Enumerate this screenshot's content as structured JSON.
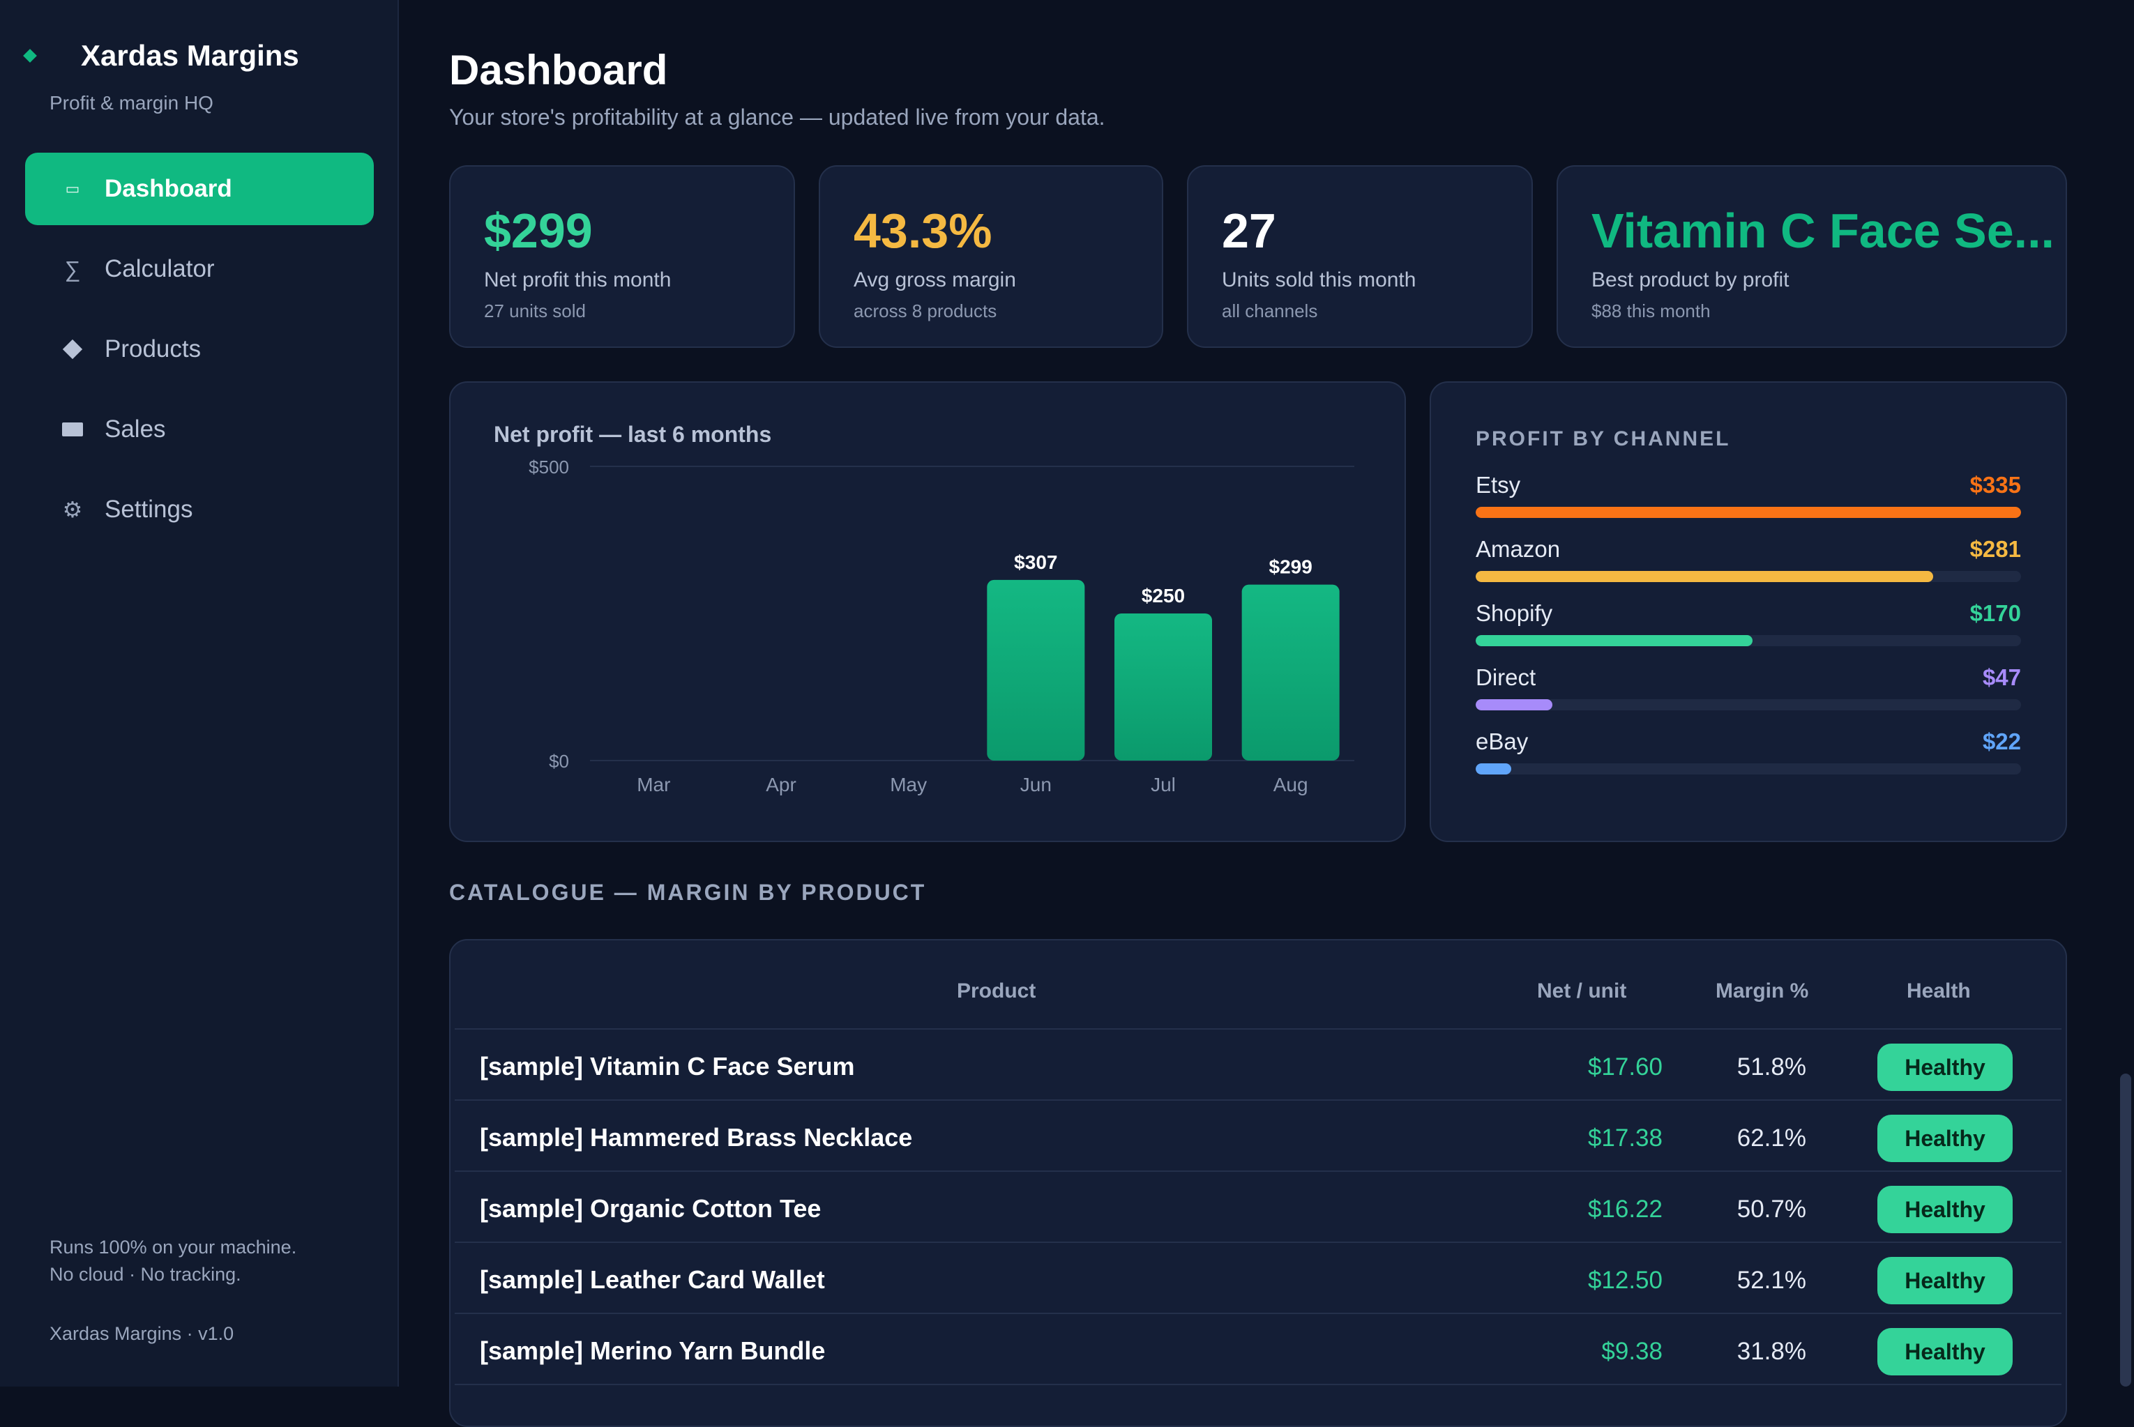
{
  "app": {
    "name": "Xardas Margins",
    "tagline": "Profit & margin HQ",
    "accent": "#10b981"
  },
  "sidebar": {
    "items": [
      {
        "label": "Dashboard",
        "icon": "dashboard-icon",
        "active": true
      },
      {
        "label": "Calculator",
        "icon": "sigma-icon"
      },
      {
        "label": "Products",
        "icon": "diamond-icon"
      },
      {
        "label": "Sales",
        "icon": "rectangle-icon"
      },
      {
        "label": "Settings",
        "icon": "gear-icon"
      }
    ],
    "footer_line1": "Runs 100% on your machine.",
    "footer_line2": "No cloud · No tracking.",
    "version": "Xardas Margins · v1.0"
  },
  "header": {
    "title": "Dashboard",
    "subtitle": "Your store's profitability at a glance — updated live from your data."
  },
  "kpis": [
    {
      "value": "$299",
      "label": "Net profit this month",
      "sub": "27 units sold",
      "color": "#34d399"
    },
    {
      "value": "43.3%",
      "label": "Avg gross margin",
      "sub": "across 8 products",
      "color": "#f5b942"
    },
    {
      "value": "27",
      "label": "Units sold this month",
      "sub": "all channels",
      "color": "#ffffff"
    },
    {
      "value": "Vitamin C Face Se...",
      "label": "Best product by profit",
      "sub": "$88 this month",
      "color": "#10b981"
    }
  ],
  "chart_data": {
    "type": "bar",
    "title": "Net profit — last 6 months",
    "categories": [
      "Mar",
      "Apr",
      "May",
      "Jun",
      "Jul",
      "Aug"
    ],
    "values": [
      0,
      0,
      0,
      307,
      250,
      299
    ],
    "data_labels": [
      "",
      "",
      "",
      "$307",
      "$250",
      "$299"
    ],
    "ytick_labels": [
      "$0",
      "$500"
    ],
    "ylim": [
      0,
      500
    ],
    "grid": true,
    "color": "#10b981"
  },
  "channels": {
    "title": "PROFIT BY CHANNEL",
    "items": [
      {
        "name": "Etsy",
        "value": "$335",
        "amount": 335,
        "color": "#f97316"
      },
      {
        "name": "Amazon",
        "value": "$281",
        "amount": 281,
        "color": "#f5b942"
      },
      {
        "name": "Shopify",
        "value": "$170",
        "amount": 170,
        "color": "#34d399"
      },
      {
        "name": "Direct",
        "value": "$47",
        "amount": 47,
        "color": "#a78bfa"
      },
      {
        "name": "eBay",
        "value": "$22",
        "amount": 22,
        "color": "#60a5fa"
      }
    ]
  },
  "catalogue": {
    "title": "CATALOGUE — MARGIN BY PRODUCT",
    "columns": [
      "Product",
      "Net / unit",
      "Margin %",
      "Health"
    ],
    "rows": [
      {
        "product": "[sample] Vitamin C Face Serum",
        "net": "$17.60",
        "margin": "51.8%",
        "health": "Healthy"
      },
      {
        "product": "[sample] Hammered Brass Necklace",
        "net": "$17.38",
        "margin": "62.1%",
        "health": "Healthy"
      },
      {
        "product": "[sample] Organic Cotton Tee",
        "net": "$16.22",
        "margin": "50.7%",
        "health": "Healthy"
      },
      {
        "product": "[sample] Leather Card Wallet",
        "net": "$12.50",
        "margin": "52.1%",
        "health": "Healthy"
      },
      {
        "product": "[sample] Merino Yarn Bundle",
        "net": "$9.38",
        "margin": "31.8%",
        "health": "Healthy"
      }
    ]
  }
}
